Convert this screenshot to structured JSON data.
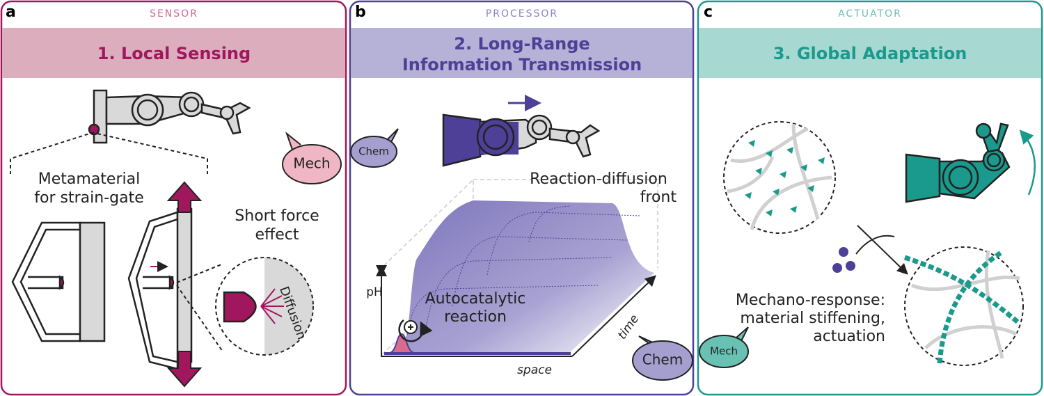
{
  "panels": [
    {
      "letter": "a",
      "role": "SENSOR",
      "heading": [
        "1. Local Sensing"
      ],
      "annotations": [
        [
          "Metamaterial",
          "for strain-gate"
        ],
        [
          "Short force",
          "effect"
        ],
        [
          "Diffusion"
        ]
      ]
    },
    {
      "letter": "b",
      "role": "PROCESSOR",
      "heading": [
        "2. Long-Range",
        "Information Transmission"
      ],
      "annotations": [
        [
          "Reaction-diffusion",
          "front"
        ],
        [
          "pH"
        ],
        [
          "Autocatalytic",
          "reaction"
        ],
        [
          "space"
        ],
        [
          "time"
        ]
      ]
    },
    {
      "letter": "c",
      "role": "ACTUATOR",
      "heading": [
        "3. Global Adaptation"
      ],
      "annotations": [
        [
          "Mechano-response:",
          "material stiffening,",
          "actuation"
        ]
      ]
    }
  ],
  "bubbles": [
    "Mech",
    "Chem",
    "Chem",
    "Mech"
  ]
}
